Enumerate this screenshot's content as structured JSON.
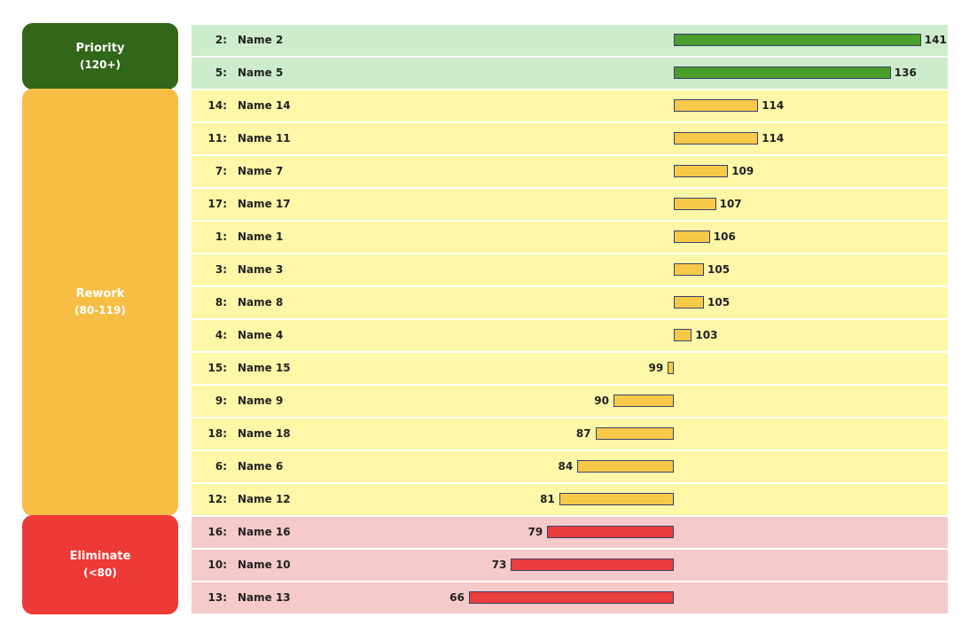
{
  "chart_data": {
    "type": "bar",
    "orientation": "horizontal",
    "baseline": 100,
    "xlim": [
      57,
      144
    ],
    "groups": [
      {
        "key": "priority",
        "title": "Priority",
        "range": "(120+)",
        "box_color": "#326619",
        "row_color": "#cdeccb",
        "bar_color": "#4a9e2b"
      },
      {
        "key": "rework",
        "title": "Rework",
        "range": "(80-119)",
        "box_color": "#f7be46",
        "row_color": "#fdf8a8",
        "bar_color": "#f7c948"
      },
      {
        "key": "eliminate",
        "title": "Eliminate",
        "range": "(<80)",
        "box_color": "#ee3a36",
        "row_color": "#f6cacb",
        "bar_color": "#ea3d3d"
      }
    ],
    "rows": [
      {
        "rank": "2:",
        "name": "Name 2",
        "value": 141,
        "group": "priority"
      },
      {
        "rank": "5:",
        "name": "Name 5",
        "value": 136,
        "group": "priority"
      },
      {
        "rank": "14:",
        "name": "Name 14",
        "value": 114,
        "group": "rework"
      },
      {
        "rank": "11:",
        "name": "Name 11",
        "value": 114,
        "group": "rework"
      },
      {
        "rank": "7:",
        "name": "Name 7",
        "value": 109,
        "group": "rework"
      },
      {
        "rank": "17:",
        "name": "Name 17",
        "value": 107,
        "group": "rework"
      },
      {
        "rank": "1:",
        "name": "Name 1",
        "value": 106,
        "group": "rework"
      },
      {
        "rank": "3:",
        "name": "Name 3",
        "value": 105,
        "group": "rework"
      },
      {
        "rank": "8:",
        "name": "Name 8",
        "value": 105,
        "group": "rework"
      },
      {
        "rank": "4:",
        "name": "Name 4",
        "value": 103,
        "group": "rework"
      },
      {
        "rank": "15:",
        "name": "Name 15",
        "value": 99,
        "group": "rework"
      },
      {
        "rank": "9:",
        "name": "Name 9",
        "value": 90,
        "group": "rework"
      },
      {
        "rank": "18:",
        "name": "Name 18",
        "value": 87,
        "group": "rework"
      },
      {
        "rank": "6:",
        "name": "Name 6",
        "value": 84,
        "group": "rework"
      },
      {
        "rank": "12:",
        "name": "Name 12",
        "value": 81,
        "group": "rework"
      },
      {
        "rank": "16:",
        "name": "Name 16",
        "value": 79,
        "group": "eliminate"
      },
      {
        "rank": "10:",
        "name": "Name 10",
        "value": 73,
        "group": "eliminate"
      },
      {
        "rank": "13:",
        "name": "Name 13",
        "value": 66,
        "group": "eliminate"
      }
    ]
  }
}
